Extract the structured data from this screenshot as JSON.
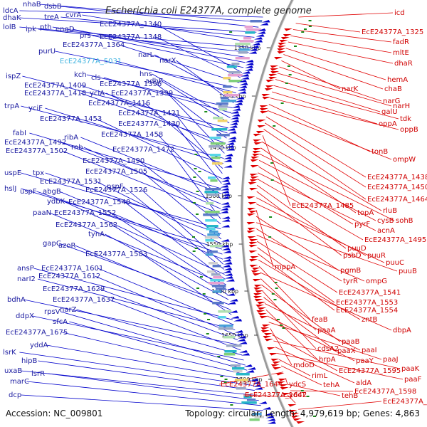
{
  "title": "Escherichia coli E24377A, complete genome",
  "footer": {
    "accession": "Accession: NC_009801",
    "summary": "Topology: circular; Length: 4,979,619 bp; Genes: 4,863"
  },
  "colors": {
    "plus_strand": "#0000cc",
    "minus_strand": "#e00000",
    "highlight": "#3fb3e0",
    "backbone": "#888888",
    "gc_marks": "#1a8a1a"
  },
  "scale_ticks": [
    {
      "label": "1350 kbp"
    },
    {
      "label": "1400 kbp"
    },
    {
      "label": "1450 kbp"
    },
    {
      "label": "1500 kbp"
    },
    {
      "label": "1550 kbp"
    },
    {
      "label": "1600 kbp"
    },
    {
      "label": "1650 kbp"
    },
    {
      "label": "1700 kbp"
    }
  ],
  "left_labels": [
    "ldcA",
    "nhaB",
    "dsbB",
    "dhaK",
    "treA",
    "cvrA",
    "lolB",
    "ipk",
    "pth",
    "engD",
    "prs",
    "EcE24377A_1340",
    "EcE24377A_1348",
    "EcE24377A_1364",
    "purU",
    "EcE24377A_5031",
    "narL",
    "narX",
    "kch",
    "cls",
    "hns",
    "adhE",
    "ispZ",
    "EcE24377A_1409",
    "EcE24377A_1396",
    "EcE24377A_1418",
    "yciA",
    "EcE24377A_1399",
    "trpA",
    "yciF",
    "EcE24377A_1416",
    "EcE24377A_1421",
    "EcE24377A_1453",
    "EcE24377A_1430",
    "fabI",
    "ribA",
    "EcE24377A_1458",
    "EcE24377A_1492",
    "rnb",
    "EcE24377A_1502",
    "EcE24377A_1472",
    "EcE24377A_1490",
    "uspE",
    "tpx",
    "EcE24377A_1505",
    "EcE24377A_1531",
    "hslJ",
    "uspF",
    "abgB",
    "EcE24377A_1526",
    "pspF",
    "ydbK",
    "EcE24377A_1540",
    "paaN",
    "EcE24377A_1552",
    "EcE24377A_1562",
    "tynA",
    "gapC",
    "azoR",
    "EcE24377A_1583",
    "ansP",
    "EcE24377A_1601",
    "narI2",
    "EcE24377A_1612",
    "EcE24377A_1629",
    "bdhA",
    "EcE24377A_1637",
    "narZ",
    "ddpX",
    "rpsV",
    "sfcA",
    "EcE24377A_1675",
    "yddA",
    "lsrK",
    "hipB",
    "uxaB",
    "lsrR",
    "marC",
    "dcp"
  ],
  "right_labels": [
    "icd",
    "EcE24377A_1325",
    "fadR",
    "mltE",
    "dhaR",
    "hemA",
    "chaB",
    "narK",
    "narG",
    "narH",
    "galU",
    "tdk",
    "oppA",
    "oppB",
    "tonB",
    "ompW",
    "EcE24377A_1438",
    "EcE24377A_1450",
    "EcE24377A_1464",
    "EcE24377A_1485",
    "rluB",
    "topA",
    "sohB",
    "cysB",
    "pyrF",
    "acnA",
    "EcE24377A_1495",
    "puuD",
    "psbD",
    "puuR",
    "puuC",
    "mppA",
    "pgmB",
    "puuB",
    "tyrR",
    "ompG",
    "EcE24377A_1541",
    "EcE24377A_1553",
    "EcE24377A_1554",
    "zntB",
    "feaB",
    "dbpA",
    "paaA",
    "paaB",
    "cdsA2",
    "paaX",
    "paaI",
    "hrpA",
    "paaY",
    "paaJ",
    "mdoD",
    "EcE24377A_1595",
    "paaK",
    "aldA",
    "paaF",
    "rimL",
    "tehA",
    "EcE24377A_1644",
    "ydcS",
    "tehB",
    "EcE24377A_1598",
    "EcE24377A_1642",
    "ydcT",
    "EcE24377A_1604"
  ]
}
